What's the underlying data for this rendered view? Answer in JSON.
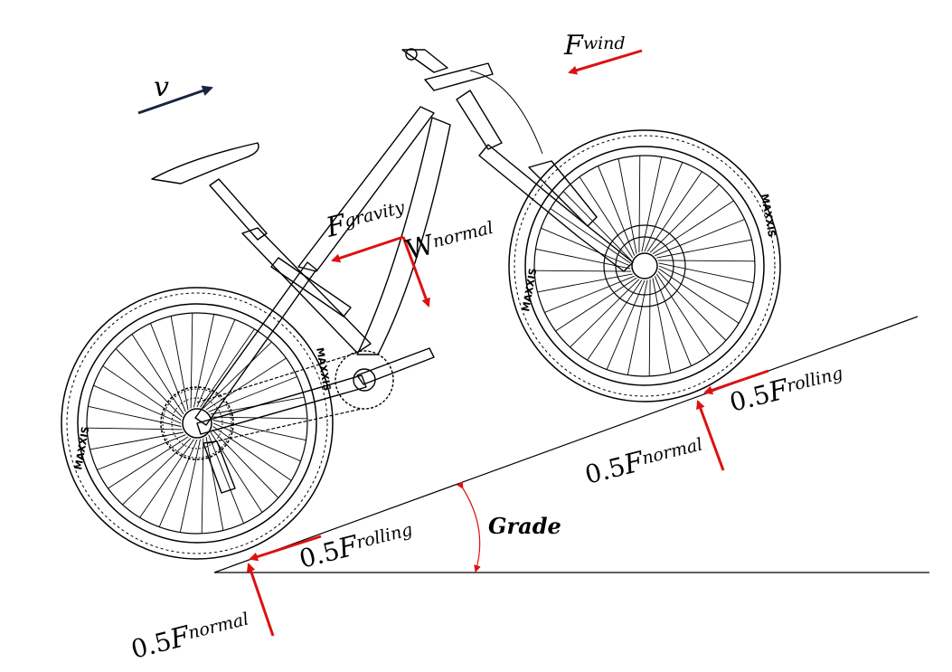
{
  "colors": {
    "force_arrow": "#dd1111",
    "velocity_arrow": "#1a2340",
    "line": "#000000",
    "background": "#ffffff"
  },
  "tire_brand": "MAXXIS",
  "labels": {
    "velocity": "v",
    "wind": {
      "main": "F",
      "sub": "wind"
    },
    "gravity": {
      "main": "F",
      "sub": "gravity"
    },
    "weight_normal": {
      "main": "W",
      "sub": "normal"
    },
    "rolling_front": {
      "coef": "0.5",
      "main": "F",
      "sub": "rolling"
    },
    "normal_front": {
      "coef": "0.5",
      "main": "F",
      "sub": "normal"
    },
    "rolling_rear": {
      "coef": "0.5",
      "main": "F",
      "sub": "rolling"
    },
    "normal_rear": {
      "coef": "0.5",
      "main": "F",
      "sub": "normal"
    },
    "grade": "Grade"
  }
}
